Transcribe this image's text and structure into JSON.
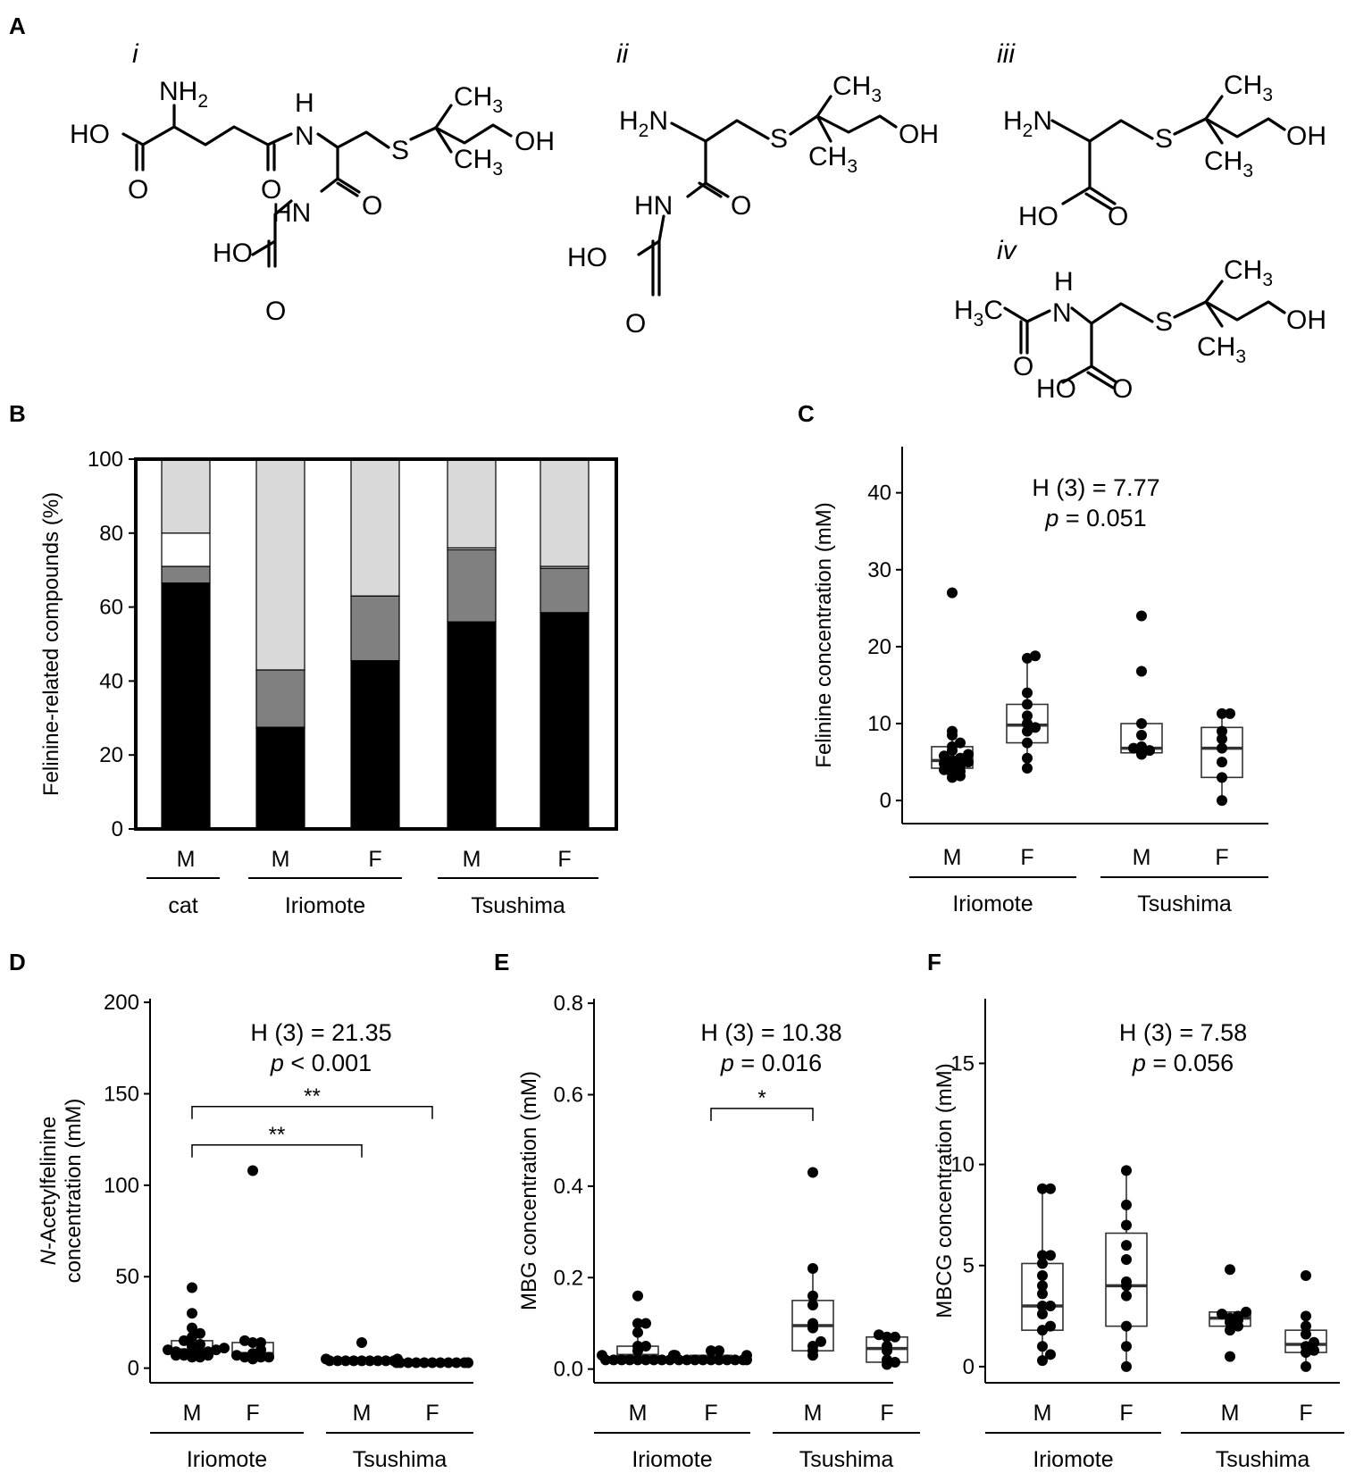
{
  "panel_labels": {
    "a": "A",
    "b": "B",
    "c": "C",
    "d": "D",
    "e": "E",
    "f": "F"
  },
  "structures": {
    "labels": [
      "i",
      "ii",
      "iii",
      "iv"
    ],
    "atoms": {
      "nh2": "NH",
      "h2n": "H",
      "n": "N",
      "h": "H",
      "hn": "HN",
      "o": "O",
      "s": "S",
      "ho": "HO",
      "oh": "OH",
      "ch3": "CH",
      "h3c": "H",
      "sub2": "2",
      "sub3": "3",
      "c": "C"
    }
  },
  "chart_data": [
    {
      "panel": "B",
      "type": "bar",
      "stacked": true,
      "categories": [
        "M",
        "M",
        "F",
        "M",
        "F"
      ],
      "groups": [
        {
          "name": "cat",
          "categories": [
            "M"
          ]
        },
        {
          "name": "Iriomote",
          "categories": [
            "M",
            "F"
          ]
        },
        {
          "name": "Tsushima",
          "categories": [
            "M",
            "F"
          ]
        }
      ],
      "series": [
        {
          "color": "#000000",
          "values": [
            66.5,
            27.5,
            45.5,
            56,
            58.5
          ]
        },
        {
          "color": "#808080",
          "values": [
            4.5,
            15.5,
            17.5,
            19.5,
            12
          ]
        },
        {
          "color": "#ffffff",
          "values": [
            9,
            0,
            0,
            0.5,
            0.5
          ]
        },
        {
          "color": "#d9d9d9",
          "values": [
            20,
            57,
            37,
            24,
            29
          ]
        }
      ],
      "ylabel": "Felinine-related compounds (%)",
      "ylim": [
        0,
        100
      ],
      "yticks": [
        "0",
        "20",
        "40",
        "60",
        "80",
        "100"
      ]
    },
    {
      "panel": "C",
      "type": "box",
      "ylabel": "Felinine concentration (mM)",
      "ylim": [
        -3,
        46
      ],
      "yticks": [
        "0",
        "10",
        "20",
        "30",
        "40"
      ],
      "categories": [
        "M",
        "F",
        "M",
        "F"
      ],
      "groups": [
        "Iriomote",
        "Tsushima"
      ],
      "stat": {
        "h": "H (3) = 7.77",
        "p_sym": "p",
        "p_rest": " = 0.051"
      },
      "boxes": [
        {
          "q1": 4.2,
          "median": 5.2,
          "q3": 7.0,
          "wlo": 3.0,
          "whi": 9.0,
          "points": [
            3.0,
            3.2,
            3.5,
            3.8,
            4.0,
            4.2,
            4.5,
            4.8,
            5.0,
            5.2,
            5.5,
            5.8,
            6.0,
            6.5,
            7.0,
            7.5,
            8.5,
            9.0,
            27.0
          ]
        },
        {
          "q1": 7.5,
          "median": 9.8,
          "q3": 12.5,
          "wlo": 4.2,
          "whi": 18.8,
          "points": [
            4.2,
            5.5,
            7.5,
            9.0,
            9.5,
            10.0,
            11.0,
            12.5,
            14.0,
            18.5,
            18.8
          ]
        },
        {
          "q1": 6.2,
          "median": 6.8,
          "q3": 10.0,
          "wlo": 6.0,
          "whi": 10.0,
          "points": [
            6.0,
            6.2,
            6.5,
            6.8,
            7.0,
            8.5,
            10.0,
            16.8,
            24.0
          ]
        },
        {
          "q1": 3.0,
          "median": 6.8,
          "q3": 9.5,
          "wlo": 0.0,
          "whi": 11.3,
          "points": [
            0.0,
            3.0,
            5.0,
            6.8,
            8.0,
            9.0,
            11.3,
            11.3
          ]
        }
      ]
    },
    {
      "panel": "D",
      "type": "box",
      "ylabel_italic": "N",
      "ylabel_rest": "-Acetylfelinine",
      "ylabel2": "concentration  (mM)",
      "ylim": [
        -8,
        202
      ],
      "yticks": [
        "0",
        "50",
        "100",
        "150",
        "200"
      ],
      "categories": [
        "M",
        "F",
        "M",
        "F"
      ],
      "groups": [
        "Iriomote",
        "Tsushima"
      ],
      "stat": {
        "h": "H (3) = 21.35",
        "p_sym": "p",
        "p_rest": " < 0.001"
      },
      "brackets": [
        {
          "from": 0,
          "to": 3,
          "y": 143,
          "label": "**"
        },
        {
          "from": 0,
          "to": 2,
          "y": 122,
          "label": "**"
        }
      ],
      "boxes": [
        {
          "q1": 8.0,
          "median": 10.0,
          "q3": 15.0,
          "wlo": 6.0,
          "whi": 22.0,
          "points": [
            6,
            6,
            7,
            7,
            7,
            8,
            8,
            8,
            9,
            9,
            10,
            10,
            11,
            12,
            13,
            15,
            17,
            19,
            22,
            30,
            44
          ]
        },
        {
          "q1": 7.0,
          "median": 8.0,
          "q3": 14.0,
          "wlo": 5.0,
          "whi": 15.0,
          "points": [
            5,
            6,
            6,
            6,
            7,
            8,
            10,
            14,
            14,
            15,
            108
          ]
        },
        {
          "q1": 4.0,
          "median": 4.5,
          "q3": 5.0,
          "wlo": 4.0,
          "whi": 5.0,
          "points": [
            4,
            4,
            4,
            4,
            4,
            4,
            4,
            4,
            4,
            5,
            5,
            14
          ]
        },
        {
          "q1": 3.0,
          "median": 3.3,
          "q3": 3.6,
          "wlo": 3.0,
          "whi": 3.6,
          "points": [
            3,
            3,
            3,
            3,
            3,
            3,
            3,
            3,
            3,
            3,
            3,
            3
          ]
        }
      ]
    },
    {
      "panel": "E",
      "type": "box",
      "ylabel": "MBG concentration (mM)",
      "ylim": [
        -0.03,
        0.81
      ],
      "yticks": [
        "0.0",
        "0.2",
        "0.4",
        "0.6",
        "0.8"
      ],
      "categories": [
        "M",
        "F",
        "M",
        "F"
      ],
      "groups": [
        "Iriomote",
        "Tsushima"
      ],
      "stat": {
        "h": "H (3) = 10.38",
        "p_sym": "p",
        "p_rest": " = 0.016"
      },
      "brackets": [
        {
          "from": 1,
          "to": 2,
          "y": 0.57,
          "label": "*"
        }
      ],
      "boxes": [
        {
          "q1": 0.02,
          "median": 0.03,
          "q3": 0.05,
          "wlo": 0.02,
          "whi": 0.1,
          "points": [
            0.02,
            0.02,
            0.02,
            0.02,
            0.02,
            0.02,
            0.02,
            0.02,
            0.02,
            0.03,
            0.03,
            0.03,
            0.04,
            0.05,
            0.05,
            0.08,
            0.1,
            0.1,
            0.16
          ]
        },
        {
          "q1": 0.02,
          "median": 0.02,
          "q3": 0.03,
          "wlo": 0.02,
          "whi": 0.04,
          "points": [
            0.02,
            0.02,
            0.02,
            0.02,
            0.02,
            0.02,
            0.02,
            0.02,
            0.02,
            0.02,
            0.03,
            0.03,
            0.04,
            0.04
          ]
        },
        {
          "q1": 0.04,
          "median": 0.095,
          "q3": 0.15,
          "wlo": 0.03,
          "whi": 0.22,
          "points": [
            0.03,
            0.04,
            0.05,
            0.06,
            0.09,
            0.1,
            0.14,
            0.16,
            0.22,
            0.43
          ]
        },
        {
          "q1": 0.015,
          "median": 0.045,
          "q3": 0.07,
          "wlo": 0.01,
          "whi": 0.075,
          "points": [
            0.01,
            0.015,
            0.02,
            0.04,
            0.05,
            0.07,
            0.07,
            0.075
          ]
        }
      ]
    },
    {
      "panel": "F",
      "type": "box",
      "ylabel": "MBCG concentration (mM)",
      "ylim": [
        -0.8,
        18.2
      ],
      "yticks": [
        "0",
        "5",
        "10",
        "15"
      ],
      "categories": [
        "M",
        "F",
        "M",
        "F"
      ],
      "groups": [
        "Iriomote",
        "Tsushima"
      ],
      "stat": {
        "h": "H (3) = 7.58",
        "p_sym": "p",
        "p_rest": " = 0.056"
      },
      "boxes": [
        {
          "q1": 1.8,
          "median": 3.0,
          "q3": 5.1,
          "wlo": 0.3,
          "whi": 8.8,
          "points": [
            0.3,
            0.6,
            1.0,
            1.8,
            2.0,
            2.6,
            3.0,
            3.0,
            3.6,
            4.0,
            4.5,
            5.1,
            5.5,
            5.5,
            8.8,
            8.8
          ]
        },
        {
          "q1": 2.0,
          "median": 4.0,
          "q3": 6.6,
          "wlo": 0.0,
          "whi": 9.7,
          "points": [
            0.0,
            1.0,
            2.0,
            3.5,
            4.0,
            4.2,
            5.3,
            6.0,
            7.0,
            8.0,
            9.7
          ]
        },
        {
          "q1": 2.0,
          "median": 2.4,
          "q3": 2.7,
          "wlo": 2.0,
          "whi": 2.7,
          "points": [
            0.5,
            1.8,
            2.0,
            2.2,
            2.3,
            2.4,
            2.5,
            2.6,
            2.7,
            4.8
          ]
        },
        {
          "q1": 0.7,
          "median": 1.1,
          "q3": 1.8,
          "wlo": 0.0,
          "whi": 2.5,
          "points": [
            0.0,
            0.7,
            0.8,
            1.0,
            1.2,
            1.6,
            2.0,
            2.5,
            4.5
          ]
        }
      ]
    }
  ]
}
